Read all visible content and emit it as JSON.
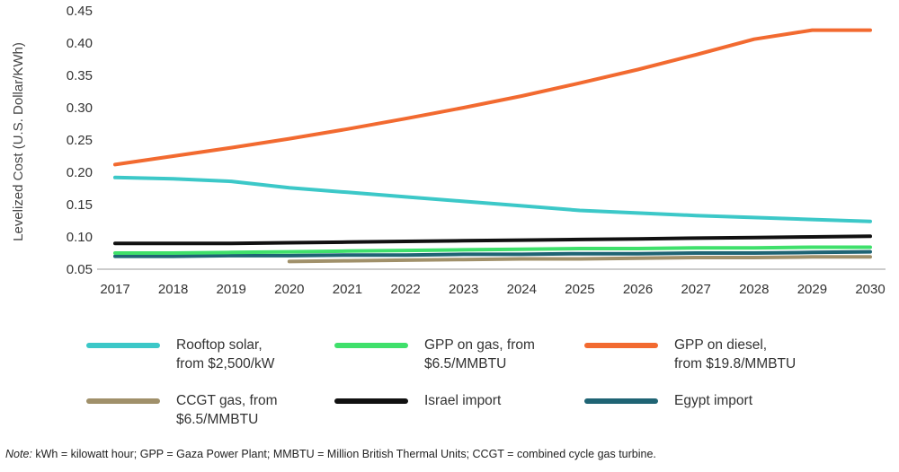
{
  "chart_data": {
    "type": "line",
    "title": "",
    "xlabel": "",
    "ylabel": "Levelized Cost (U.S. Dollar/KWh)",
    "ylim": [
      0.05,
      0.45
    ],
    "yticks": [
      "0.05",
      "0.10",
      "0.15",
      "0.20",
      "0.25",
      "0.30",
      "0.35",
      "0.40",
      "0.45"
    ],
    "x": [
      "2017",
      "2018",
      "2019",
      "2020",
      "2021",
      "2022",
      "2023",
      "2024",
      "2025",
      "2026",
      "2027",
      "2028",
      "2029",
      "2030"
    ],
    "grid": false,
    "legend_position": "bottom",
    "series": [
      {
        "name": "Rooftop solar,\nfrom $2,500/kW",
        "color": "#3cc8c8",
        "values": [
          0.192,
          0.19,
          0.186,
          0.176,
          0.169,
          0.162,
          0.155,
          0.148,
          0.141,
          0.137,
          0.133,
          0.13,
          0.127,
          0.124
        ]
      },
      {
        "name": "GPP on gas, from\n$6.5/MMBTU",
        "color": "#3fe06b",
        "values": [
          0.075,
          0.075,
          0.076,
          0.077,
          0.078,
          0.079,
          0.08,
          0.081,
          0.082,
          0.082,
          0.083,
          0.083,
          0.084,
          0.084
        ]
      },
      {
        "name": "GPP on diesel,\nfrom $19.8/MMBTU",
        "color": "#f26a30",
        "values": [
          0.212,
          0.225,
          0.238,
          0.252,
          0.267,
          0.283,
          0.3,
          0.318,
          0.338,
          0.359,
          0.382,
          0.406,
          0.42,
          0.42
        ]
      },
      {
        "name": "CCGT gas, from\n$6.5/MMBTU",
        "color": "#a0906a",
        "values": [
          null,
          null,
          null,
          0.062,
          0.063,
          0.064,
          0.065,
          0.066,
          0.066,
          0.067,
          0.068,
          0.068,
          0.069,
          0.069
        ]
      },
      {
        "name": "Israel import",
        "color": "#111111",
        "values": [
          0.09,
          0.09,
          0.09,
          0.091,
          0.092,
          0.093,
          0.094,
          0.095,
          0.096,
          0.097,
          0.098,
          0.099,
          0.1,
          0.101
        ]
      },
      {
        "name": "Egypt import",
        "color": "#1f6474",
        "values": [
          0.07,
          0.07,
          0.071,
          0.071,
          0.072,
          0.072,
          0.073,
          0.073,
          0.074,
          0.074,
          0.075,
          0.075,
          0.076,
          0.077
        ]
      }
    ]
  },
  "note": {
    "prefix": "Note:",
    "text": " kWh = kilowatt hour; GPP = Gaza Power Plant; MMBTU = Million British Thermal Units; CCGT = combined cycle gas turbine."
  }
}
